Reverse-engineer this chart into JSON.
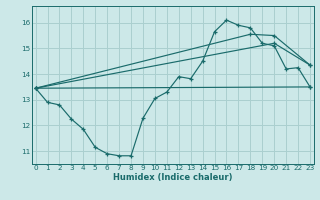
{
  "bg_color": "#cce8e8",
  "grid_color": "#aacfcf",
  "line_color": "#1a6b6b",
  "xlabel": "Humidex (Indice chaleur)",
  "xlim": [
    -0.3,
    23.3
  ],
  "ylim": [
    10.5,
    16.65
  ],
  "yticks": [
    11,
    12,
    13,
    14,
    15,
    16
  ],
  "xticks": [
    0,
    1,
    2,
    3,
    4,
    5,
    6,
    7,
    8,
    9,
    10,
    11,
    12,
    13,
    14,
    15,
    16,
    17,
    18,
    19,
    20,
    21,
    22,
    23
  ],
  "line1_x": [
    0,
    1,
    2,
    3,
    4,
    5,
    6,
    7,
    8,
    9,
    10,
    11,
    12,
    13,
    14,
    15,
    16,
    17,
    18,
    19,
    20,
    21,
    22,
    23
  ],
  "line1_y": [
    13.45,
    12.9,
    12.8,
    12.25,
    11.85,
    11.15,
    10.9,
    10.82,
    10.82,
    12.28,
    13.05,
    13.3,
    13.9,
    13.82,
    14.5,
    15.65,
    16.1,
    15.9,
    15.8,
    15.2,
    15.1,
    14.2,
    14.25,
    13.5
  ],
  "line2_x": [
    0,
    23
  ],
  "line2_y": [
    13.45,
    13.5
  ],
  "line3_x": [
    0,
    20,
    23
  ],
  "line3_y": [
    13.45,
    15.2,
    14.35
  ],
  "line4_x": [
    0,
    18,
    20,
    23
  ],
  "line4_y": [
    13.45,
    15.55,
    15.5,
    14.35
  ]
}
